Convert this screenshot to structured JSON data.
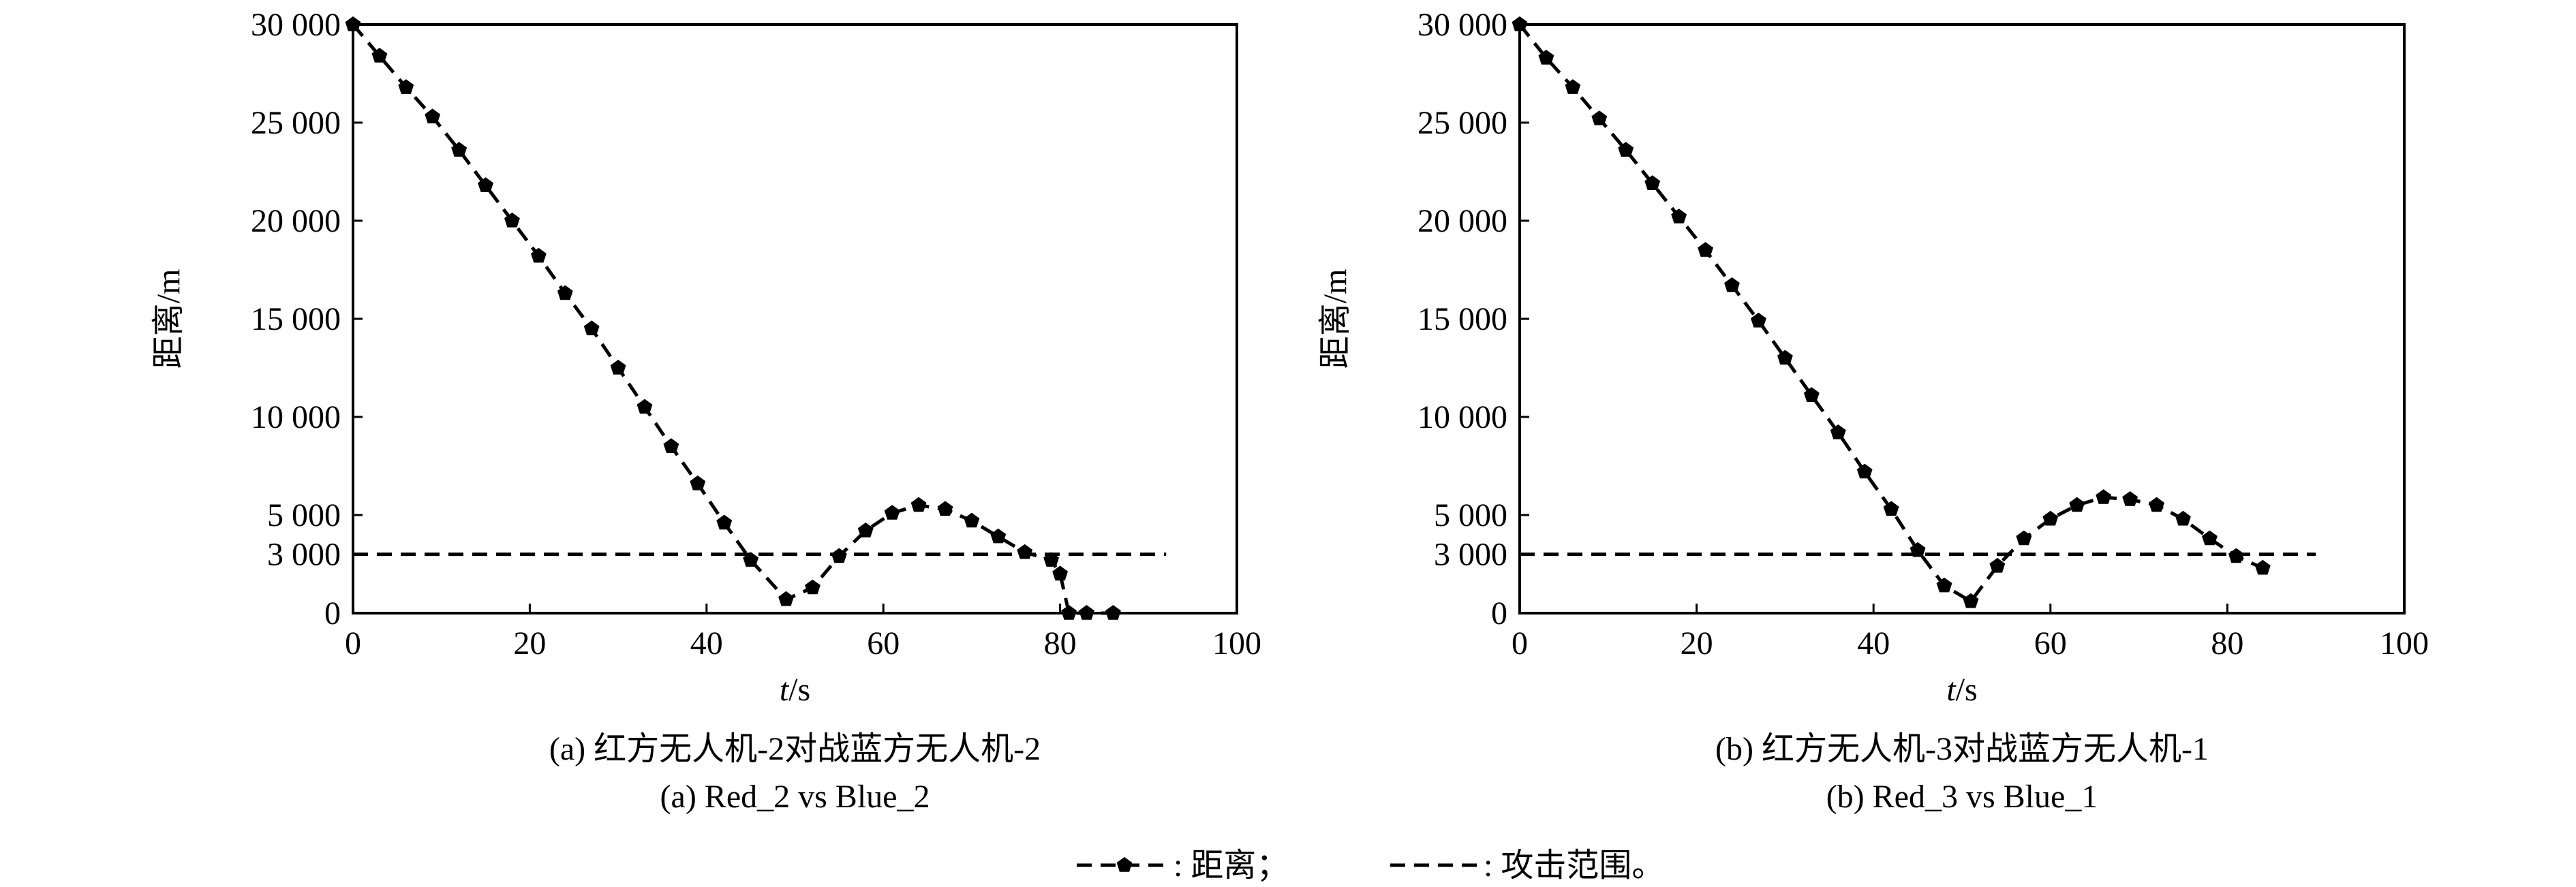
{
  "chart_data": [
    {
      "type": "line",
      "xlabel_var": "t",
      "xlabel_unit": "/s",
      "ylabel": "距离/m",
      "xlim": [
        0,
        100
      ],
      "ylim": [
        0,
        30000
      ],
      "xticks": [
        {
          "value": 0,
          "label": "0"
        },
        {
          "value": 20,
          "label": "20"
        },
        {
          "value": 40,
          "label": "40"
        },
        {
          "value": 60,
          "label": "60"
        },
        {
          "value": 80,
          "label": "80"
        },
        {
          "value": 100,
          "label": "100"
        }
      ],
      "yticks": [
        {
          "value": 0,
          "label": "0"
        },
        {
          "value": 3000,
          "label": "3 000"
        },
        {
          "value": 5000,
          "label": "5 000"
        },
        {
          "value": 10000,
          "label": "10 000"
        },
        {
          "value": 15000,
          "label": "15 000"
        },
        {
          "value": 20000,
          "label": "20 000"
        },
        {
          "value": 25000,
          "label": "25 000"
        },
        {
          "value": 30000,
          "label": "30 000"
        }
      ],
      "caption_cn": "(a) 红方无人机-2对战蓝方无人机-2",
      "caption_en": "(a) Red_2 vs Blue_2",
      "grid": false,
      "series": [
        {
          "name": "距离",
          "style": "dashed-marker",
          "x": [
            0,
            3,
            6,
            9,
            12,
            15,
            18,
            21,
            24,
            27,
            30,
            33,
            36,
            39,
            42,
            45,
            49,
            52,
            55,
            58,
            61,
            64,
            67,
            70,
            73,
            76,
            79,
            80,
            81,
            83,
            86
          ],
          "y": [
            30000,
            28400,
            26800,
            25300,
            23600,
            21800,
            20000,
            18200,
            16300,
            14500,
            12500,
            10500,
            8500,
            6600,
            4600,
            2700,
            700,
            1300,
            2900,
            4200,
            5100,
            5500,
            5300,
            4700,
            3900,
            3100,
            2700,
            2000,
            0,
            0,
            0
          ]
        },
        {
          "name": "攻击范围",
          "style": "dashed",
          "x": [
            0,
            92
          ],
          "y": [
            3000,
            3000
          ]
        }
      ]
    },
    {
      "type": "line",
      "xlabel_var": "t",
      "xlabel_unit": "/s",
      "ylabel": "距离/m",
      "xlim": [
        0,
        100
      ],
      "ylim": [
        0,
        30000
      ],
      "xticks": [
        {
          "value": 0,
          "label": "0"
        },
        {
          "value": 20,
          "label": "20"
        },
        {
          "value": 40,
          "label": "40"
        },
        {
          "value": 60,
          "label": "60"
        },
        {
          "value": 80,
          "label": "80"
        },
        {
          "value": 100,
          "label": "100"
        }
      ],
      "yticks": [
        {
          "value": 0,
          "label": "0"
        },
        {
          "value": 3000,
          "label": "3 000"
        },
        {
          "value": 5000,
          "label": "5 000"
        },
        {
          "value": 10000,
          "label": "10 000"
        },
        {
          "value": 15000,
          "label": "15 000"
        },
        {
          "value": 20000,
          "label": "20 000"
        },
        {
          "value": 25000,
          "label": "25 000"
        },
        {
          "value": 30000,
          "label": "30 000"
        }
      ],
      "caption_cn": "(b) 红方无人机-3对战蓝方无人机-1",
      "caption_en": "(b) Red_3 vs Blue_1",
      "grid": false,
      "series": [
        {
          "name": "距离",
          "style": "dashed-marker",
          "x": [
            0,
            3,
            6,
            9,
            12,
            15,
            18,
            21,
            24,
            27,
            30,
            33,
            36,
            39,
            42,
            45,
            48,
            51,
            54,
            57,
            60,
            63,
            66,
            69,
            72,
            75,
            78,
            81,
            84
          ],
          "y": [
            30000,
            28300,
            26800,
            25200,
            23600,
            21900,
            20200,
            18500,
            16700,
            14900,
            13000,
            11100,
            9200,
            7200,
            5300,
            3200,
            1400,
            600,
            2400,
            3800,
            4800,
            5500,
            5900,
            5800,
            5500,
            4800,
            3800,
            2900,
            2300
          ]
        },
        {
          "name": "攻击范围",
          "style": "dashed",
          "x": [
            0,
            90
          ],
          "y": [
            3000,
            3000
          ]
        }
      ]
    }
  ],
  "legend": [
    {
      "label": ": 距离；",
      "style": "dashed-marker"
    },
    {
      "label": ": 攻击范围。",
      "style": "dashed"
    }
  ]
}
